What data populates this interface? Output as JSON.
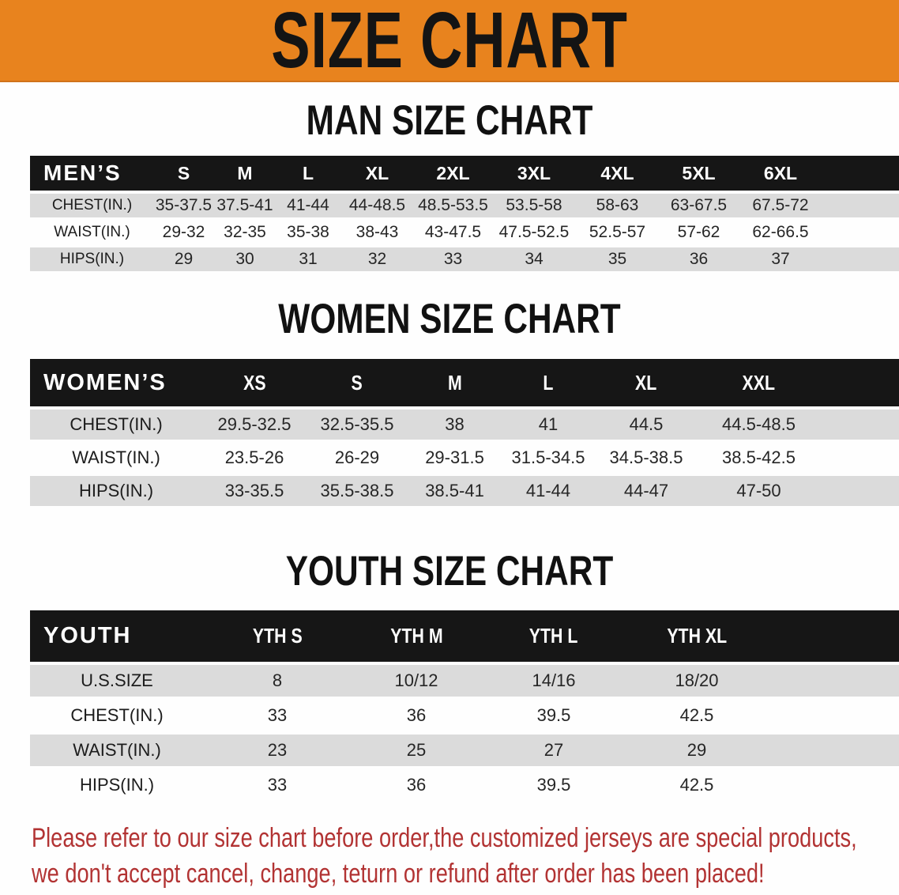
{
  "banner": {
    "title": "SIZE CHART",
    "bg_color": "#e8831e",
    "text_color": "#141414"
  },
  "sections": [
    {
      "heading": "MAN SIZE CHART",
      "table": {
        "header_label": "MEN’S",
        "columns": [
          "S",
          "M",
          "L",
          "XL",
          "2XL",
          "3XL",
          "4XL",
          "5XL",
          "6XL"
        ],
        "rows": [
          {
            "label": "CHEST(IN.)",
            "values": [
              "35-37.5",
              "37.5-41",
              "41-44",
              "44-48.5",
              "48.5-53.5",
              "53.5-58",
              "58-63",
              "63-67.5",
              "67.5-72"
            ]
          },
          {
            "label": "WAIST(IN.)",
            "values": [
              "29-32",
              "32-35",
              "35-38",
              "38-43",
              "43-47.5",
              "47.5-52.5",
              "52.5-57",
              "57-62",
              "62-66.5"
            ]
          },
          {
            "label": "HIPS(IN.)",
            "values": [
              "29",
              "30",
              "31",
              "32",
              "33",
              "34",
              "35",
              "36",
              "37"
            ]
          }
        ]
      }
    },
    {
      "heading": "WOMEN SIZE CHART",
      "table": {
        "header_label": "WOMEN’S",
        "columns": [
          "XS",
          "S",
          "M",
          "L",
          "XL",
          "XXL"
        ],
        "rows": [
          {
            "label": "CHEST(IN.)",
            "values": [
              "29.5-32.5",
              "32.5-35.5",
              "38",
              "41",
              "44.5",
              "44.5-48.5"
            ]
          },
          {
            "label": "WAIST(IN.)",
            "values": [
              "23.5-26",
              "26-29",
              "29-31.5",
              "31.5-34.5",
              "34.5-38.5",
              "38.5-42.5"
            ]
          },
          {
            "label": "HIPS(IN.)",
            "values": [
              "33-35.5",
              "35.5-38.5",
              "38.5-41",
              "41-44",
              "44-47",
              "47-50"
            ]
          }
        ]
      }
    },
    {
      "heading": "YOUTH SIZE CHART",
      "table": {
        "header_label": "YOUTH",
        "columns": [
          "YTH S",
          "YTH M",
          "YTH L",
          "YTH XL"
        ],
        "rows": [
          {
            "label": "U.S.SIZE",
            "values": [
              "8",
              "10/12",
              "14/16",
              "18/20"
            ]
          },
          {
            "label": "CHEST(IN.)",
            "values": [
              "33",
              "36",
              "39.5",
              "42.5"
            ]
          },
          {
            "label": "WAIST(IN.)",
            "values": [
              "23",
              "25",
              "27",
              "29"
            ]
          },
          {
            "label": "HIPS(IN.)",
            "values": [
              "33",
              "36",
              "39.5",
              "42.5"
            ]
          }
        ]
      }
    }
  ],
  "footnote": {
    "lines": [
      "Please refer to our size chart before order,the customized jerseys are special products,",
      "we don't accept cancel, change, teturn or refund after order has been placed!"
    ],
    "color": "#b23333"
  },
  "colors": {
    "header_row_bg": "#161616",
    "row_alt_bg": "#dbdbdb",
    "row_bg": "#ffffff"
  }
}
